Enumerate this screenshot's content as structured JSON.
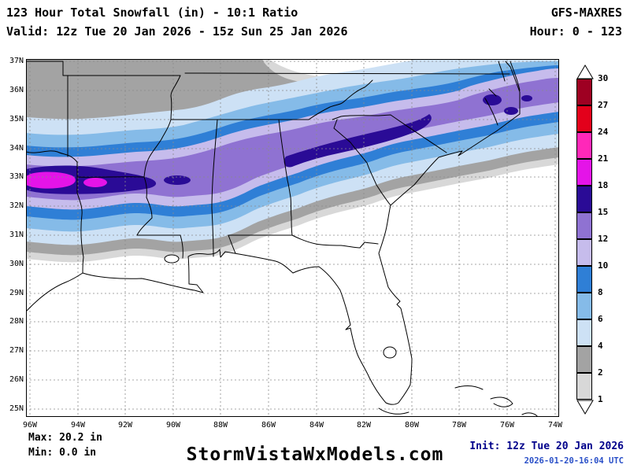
{
  "header": {
    "title": "123 Hour Total Snowfall (in) - 10:1 Ratio",
    "model": "GFS-MAXRES",
    "valid": "Valid: 12z Tue 20 Jan 2026 - 15z Sun 25 Jan 2026",
    "hour": "Hour: 0 - 123"
  },
  "map": {
    "lat_labels": [
      "37N",
      "36N",
      "35N",
      "34N",
      "33N",
      "32N",
      "31N",
      "30N",
      "29N",
      "28N",
      "27N",
      "26N",
      "25N"
    ],
    "lon_labels": [
      "96W",
      "94W",
      "92W",
      "90W",
      "88W",
      "86W",
      "84W",
      "82W",
      "80W",
      "78W",
      "76W",
      "74W"
    ],
    "region": "Southeast United States",
    "max_band_shown_in": "18-21",
    "grid_color": "#8a8a8a"
  },
  "legend": {
    "labels": [
      "30",
      "27",
      "24",
      "21",
      "18",
      "15",
      "12",
      "10",
      "8",
      "6",
      "4",
      "2",
      "1"
    ],
    "colors": [
      "#9e0022",
      "#e3001b",
      "#ff28b9",
      "#e414e8",
      "#2a0b96",
      "#8f72d2",
      "#c6bcec",
      "#2f7fd6",
      "#85bbe8",
      "#cde1f5",
      "#a3a3a3",
      "#d8d8d8"
    ],
    "units": "in"
  },
  "footer": {
    "max": "Max: 20.2 in",
    "min": "Min: 0.0 in",
    "site": "StormVistaWxModels.com",
    "init": "Init: 12z Tue 20 Jan 2026",
    "timestamp": "2026-01-20-16:04 UTC"
  }
}
